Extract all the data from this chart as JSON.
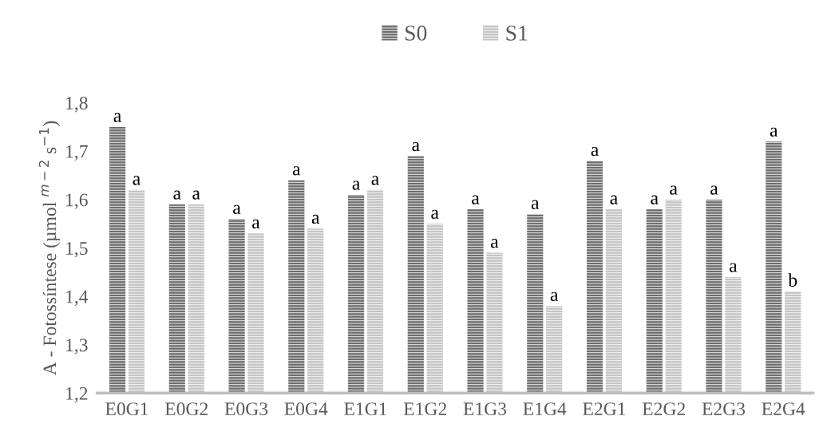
{
  "chart_data": {
    "type": "bar",
    "ylabel": "A - Fotossíntese (µmol $^{m−2}$ s$^{−1}$)",
    "categories": [
      "E0G1",
      "E0G2",
      "E0G3",
      "E0G4",
      "E1G1",
      "E1G2",
      "E1G3",
      "E1G4",
      "E2G1",
      "E2G2",
      "E2G3",
      "E2G4"
    ],
    "series": [
      {
        "name": "S0",
        "color": "#6e6e6e",
        "values": [
          1.75,
          1.59,
          1.56,
          1.64,
          1.61,
          1.69,
          1.58,
          1.57,
          1.68,
          1.58,
          1.6,
          1.72
        ],
        "value_labels": [
          "a",
          "a",
          "a",
          "a",
          "a",
          "a",
          "a",
          "a",
          "a",
          "a",
          "a",
          "a"
        ]
      },
      {
        "name": "S1",
        "color": "#c4c4c4",
        "values": [
          1.62,
          1.59,
          1.53,
          1.54,
          1.62,
          1.55,
          1.49,
          1.38,
          1.58,
          1.6,
          1.44,
          1.41
        ],
        "value_labels": [
          "a",
          "a",
          "a",
          "a",
          "a",
          "a",
          "a",
          "a",
          "a",
          "a",
          "a",
          "b"
        ]
      }
    ],
    "ylim": [
      1.2,
      1.8
    ],
    "yticks": [
      {
        "value": 1.2,
        "label": "1,2"
      },
      {
        "value": 1.3,
        "label": "1,3"
      },
      {
        "value": 1.4,
        "label": "1,4"
      },
      {
        "value": 1.5,
        "label": "1,5"
      },
      {
        "value": 1.6,
        "label": "1,6"
      },
      {
        "value": 1.7,
        "label": "1,7"
      },
      {
        "value": 1.8,
        "label": "1,8"
      }
    ],
    "grid": false,
    "legend": "top"
  }
}
